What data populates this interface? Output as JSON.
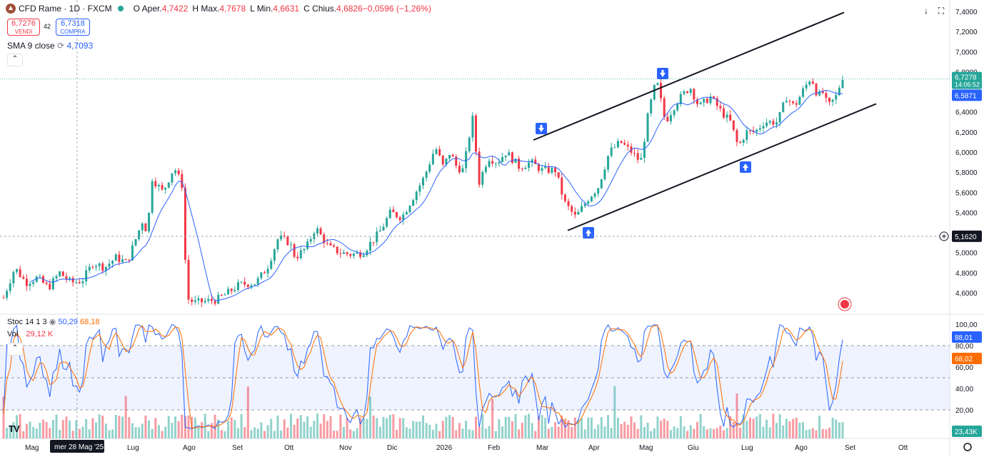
{
  "header": {
    "symbol": "CFD Rame · 1D · FXCM",
    "ohlc": [
      {
        "label": "O",
        "text": "Aper."
      },
      {
        "label": "",
        "value": "4,7422"
      },
      {
        "label": "H",
        "text": "Max."
      },
      {
        "label": "",
        "value": "4,7678"
      },
      {
        "label": "L",
        "text": "Min."
      },
      {
        "label": "",
        "value": "4,6631"
      },
      {
        "label": "C",
        "text": "Chius."
      },
      {
        "label": "",
        "value": "4,6826"
      },
      {
        "label": "",
        "value": "−0,0596 (−1,26%)"
      }
    ],
    "sell_price": "6,7276",
    "sell_label": "VENDI",
    "spread": "42",
    "buy_price": "6,7318",
    "buy_label": "COMPRA",
    "sma_label": "SMA 9 close",
    "sma_value": "4,7093"
  },
  "indicators": {
    "stoch_label": "Stoc 14 1 3",
    "stoch_k": "50,29",
    "stoch_d": "68,18",
    "vol_label": "Vol",
    "vol_value": "29,12 K"
  },
  "colors": {
    "up": "#26a69a",
    "down": "#f23645",
    "k": "#2962ff",
    "d": "#ff6d00",
    "sma": "#2962ff"
  },
  "chart_data": {
    "type": "candlestick",
    "price_axis": {
      "ticks": [
        "7,4000",
        "7,2000",
        "7,0000",
        "6,8000",
        "6,4000",
        "6,2000",
        "6,0000",
        "5,8000",
        "5,6000",
        "5,4000",
        "5,0000",
        "4,8000",
        "4,6000"
      ],
      "ylim": [
        4.5,
        7.42
      ]
    },
    "price_labels": {
      "last": "6,7278",
      "countdown": "14:06:52",
      "sma": "6,5871",
      "crosshair": "5,1620"
    },
    "stoch_axis": {
      "ticks": [
        "100,00",
        "80,00",
        "60,00",
        "40,00",
        "20,00"
      ],
      "k_label": "88,01",
      "d_label": "68,02",
      "vol_label": "23,43K"
    },
    "time_axis": [
      "Mag",
      "Lug",
      "Ago",
      "Set",
      "Ott",
      "Nov",
      "Dic",
      "2026",
      "Feb",
      "Mar",
      "Apr",
      "Mag",
      "Giu",
      "Lug",
      "Ago",
      "Set",
      "Ott"
    ],
    "crosshair_date": "mer 28 Mag '25",
    "keypoints": [
      [
        0,
        4.55
      ],
      [
        10,
        4.85
      ],
      [
        20,
        4.7
      ],
      [
        30,
        4.75
      ],
      [
        40,
        4.65
      ],
      [
        50,
        4.8
      ],
      [
        60,
        4.7
      ],
      [
        70,
        4.72
      ],
      [
        80,
        4.9
      ],
      [
        90,
        4.85
      ],
      [
        100,
        4.95
      ],
      [
        110,
        4.9
      ],
      [
        115,
        5.05
      ],
      [
        125,
        5.35
      ],
      [
        128,
        5.15
      ],
      [
        132,
        5.75
      ],
      [
        142,
        5.6
      ],
      [
        152,
        5.85
      ],
      [
        160,
        5.65
      ],
      [
        163,
        4.55
      ],
      [
        170,
        4.5
      ],
      [
        190,
        4.53
      ],
      [
        200,
        4.6
      ],
      [
        210,
        4.68
      ],
      [
        225,
        4.7
      ],
      [
        235,
        4.85
      ],
      [
        245,
        5.15
      ],
      [
        255,
        5.1
      ],
      [
        260,
        4.95
      ],
      [
        270,
        5.05
      ],
      [
        278,
        5.25
      ],
      [
        290,
        5.05
      ],
      [
        300,
        5.0
      ],
      [
        310,
        4.98
      ],
      [
        320,
        5.0
      ],
      [
        335,
        5.2
      ],
      [
        345,
        5.4
      ],
      [
        355,
        5.35
      ],
      [
        365,
        5.55
      ],
      [
        375,
        5.75
      ],
      [
        385,
        6.05
      ],
      [
        392,
        5.85
      ],
      [
        398,
        6.0
      ],
      [
        404,
        5.85
      ],
      [
        410,
        5.82
      ],
      [
        418,
        6.35
      ],
      [
        424,
        5.7
      ],
      [
        432,
        5.95
      ],
      [
        440,
        5.9
      ],
      [
        448,
        6.0
      ],
      [
        460,
        5.85
      ],
      [
        470,
        5.9
      ],
      [
        480,
        5.82
      ],
      [
        492,
        5.82
      ],
      [
        500,
        5.5
      ],
      [
        510,
        5.35
      ],
      [
        522,
        5.55
      ],
      [
        530,
        5.65
      ],
      [
        540,
        6.0
      ],
      [
        550,
        6.1
      ],
      [
        555,
        6.05
      ],
      [
        560,
        6.0
      ],
      [
        568,
        5.9
      ],
      [
        575,
        6.4
      ],
      [
        582,
        6.72
      ],
      [
        590,
        6.3
      ],
      [
        600,
        6.5
      ],
      [
        612,
        6.65
      ],
      [
        620,
        6.45
      ],
      [
        630,
        6.55
      ],
      [
        640,
        6.4
      ],
      [
        648,
        6.3
      ],
      [
        655,
        6.05
      ],
      [
        662,
        6.2
      ],
      [
        670,
        6.2
      ],
      [
        678,
        6.3
      ],
      [
        690,
        6.3
      ],
      [
        698,
        6.55
      ],
      [
        705,
        6.45
      ],
      [
        712,
        6.6
      ],
      [
        720,
        6.75
      ],
      [
        726,
        6.55
      ],
      [
        730,
        6.6
      ],
      [
        735,
        6.45
      ],
      [
        742,
        6.55
      ],
      [
        748,
        6.75
      ]
    ],
    "sma_series_label": "SMA 9 close",
    "stoch_series": [
      "%K",
      "%D"
    ]
  }
}
